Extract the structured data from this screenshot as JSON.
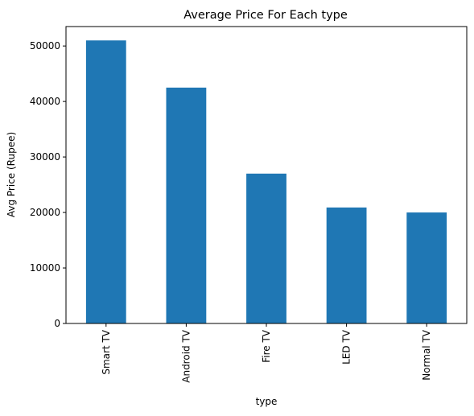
{
  "chart_data": {
    "type": "bar",
    "title": "Average Price For Each type",
    "xlabel": "type",
    "ylabel": "Avg Price (Rupee)",
    "categories": [
      "Smart TV",
      "Android TV",
      "Fire TV",
      "LED TV",
      "Normal TV"
    ],
    "values": [
      51000,
      42500,
      27000,
      20900,
      20000
    ],
    "ylim": [
      0,
      53500
    ],
    "yticks": [
      0,
      10000,
      20000,
      30000,
      40000,
      50000
    ],
    "ytick_labels": [
      "0",
      "10000",
      "20000",
      "30000",
      "40000",
      "50000"
    ],
    "grid": false,
    "legend": "none",
    "bar_color": "#1f77b4"
  }
}
